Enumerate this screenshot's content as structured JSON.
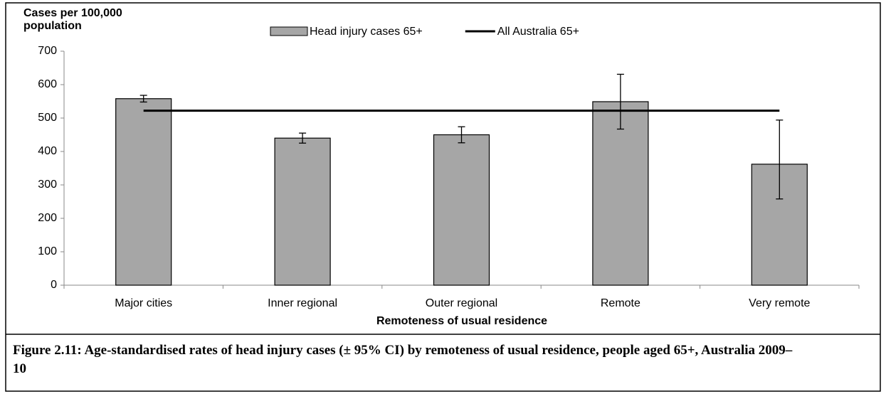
{
  "chart_data": {
    "type": "bar",
    "y_label": "Cases per 100,000 population",
    "x_label": "Remoteness of usual residence",
    "caption": "Figure 2.11: Age-standardised rates of head injury cases (± 95% CI) by remoteness of usual residence, people aged 65+, Australia 2009–10",
    "categories": [
      "Major cities",
      "Inner regional",
      "Outer regional",
      "Remote",
      "Very remote"
    ],
    "series": [
      {
        "name": "Head injury cases 65+",
        "color": "#a6a6a6",
        "values": [
          558,
          440,
          450,
          549,
          362
        ],
        "ci_lower": [
          548,
          425,
          426,
          467,
          258
        ],
        "ci_upper": [
          568,
          455,
          474,
          631,
          494
        ]
      }
    ],
    "reference_lines": [
      {
        "name": "All Australia 65+",
        "color": "#000000",
        "value": 522
      }
    ],
    "ylim": [
      0,
      700
    ],
    "yticks": [
      0,
      100,
      200,
      300,
      400,
      500,
      600,
      700
    ],
    "grid": false
  }
}
